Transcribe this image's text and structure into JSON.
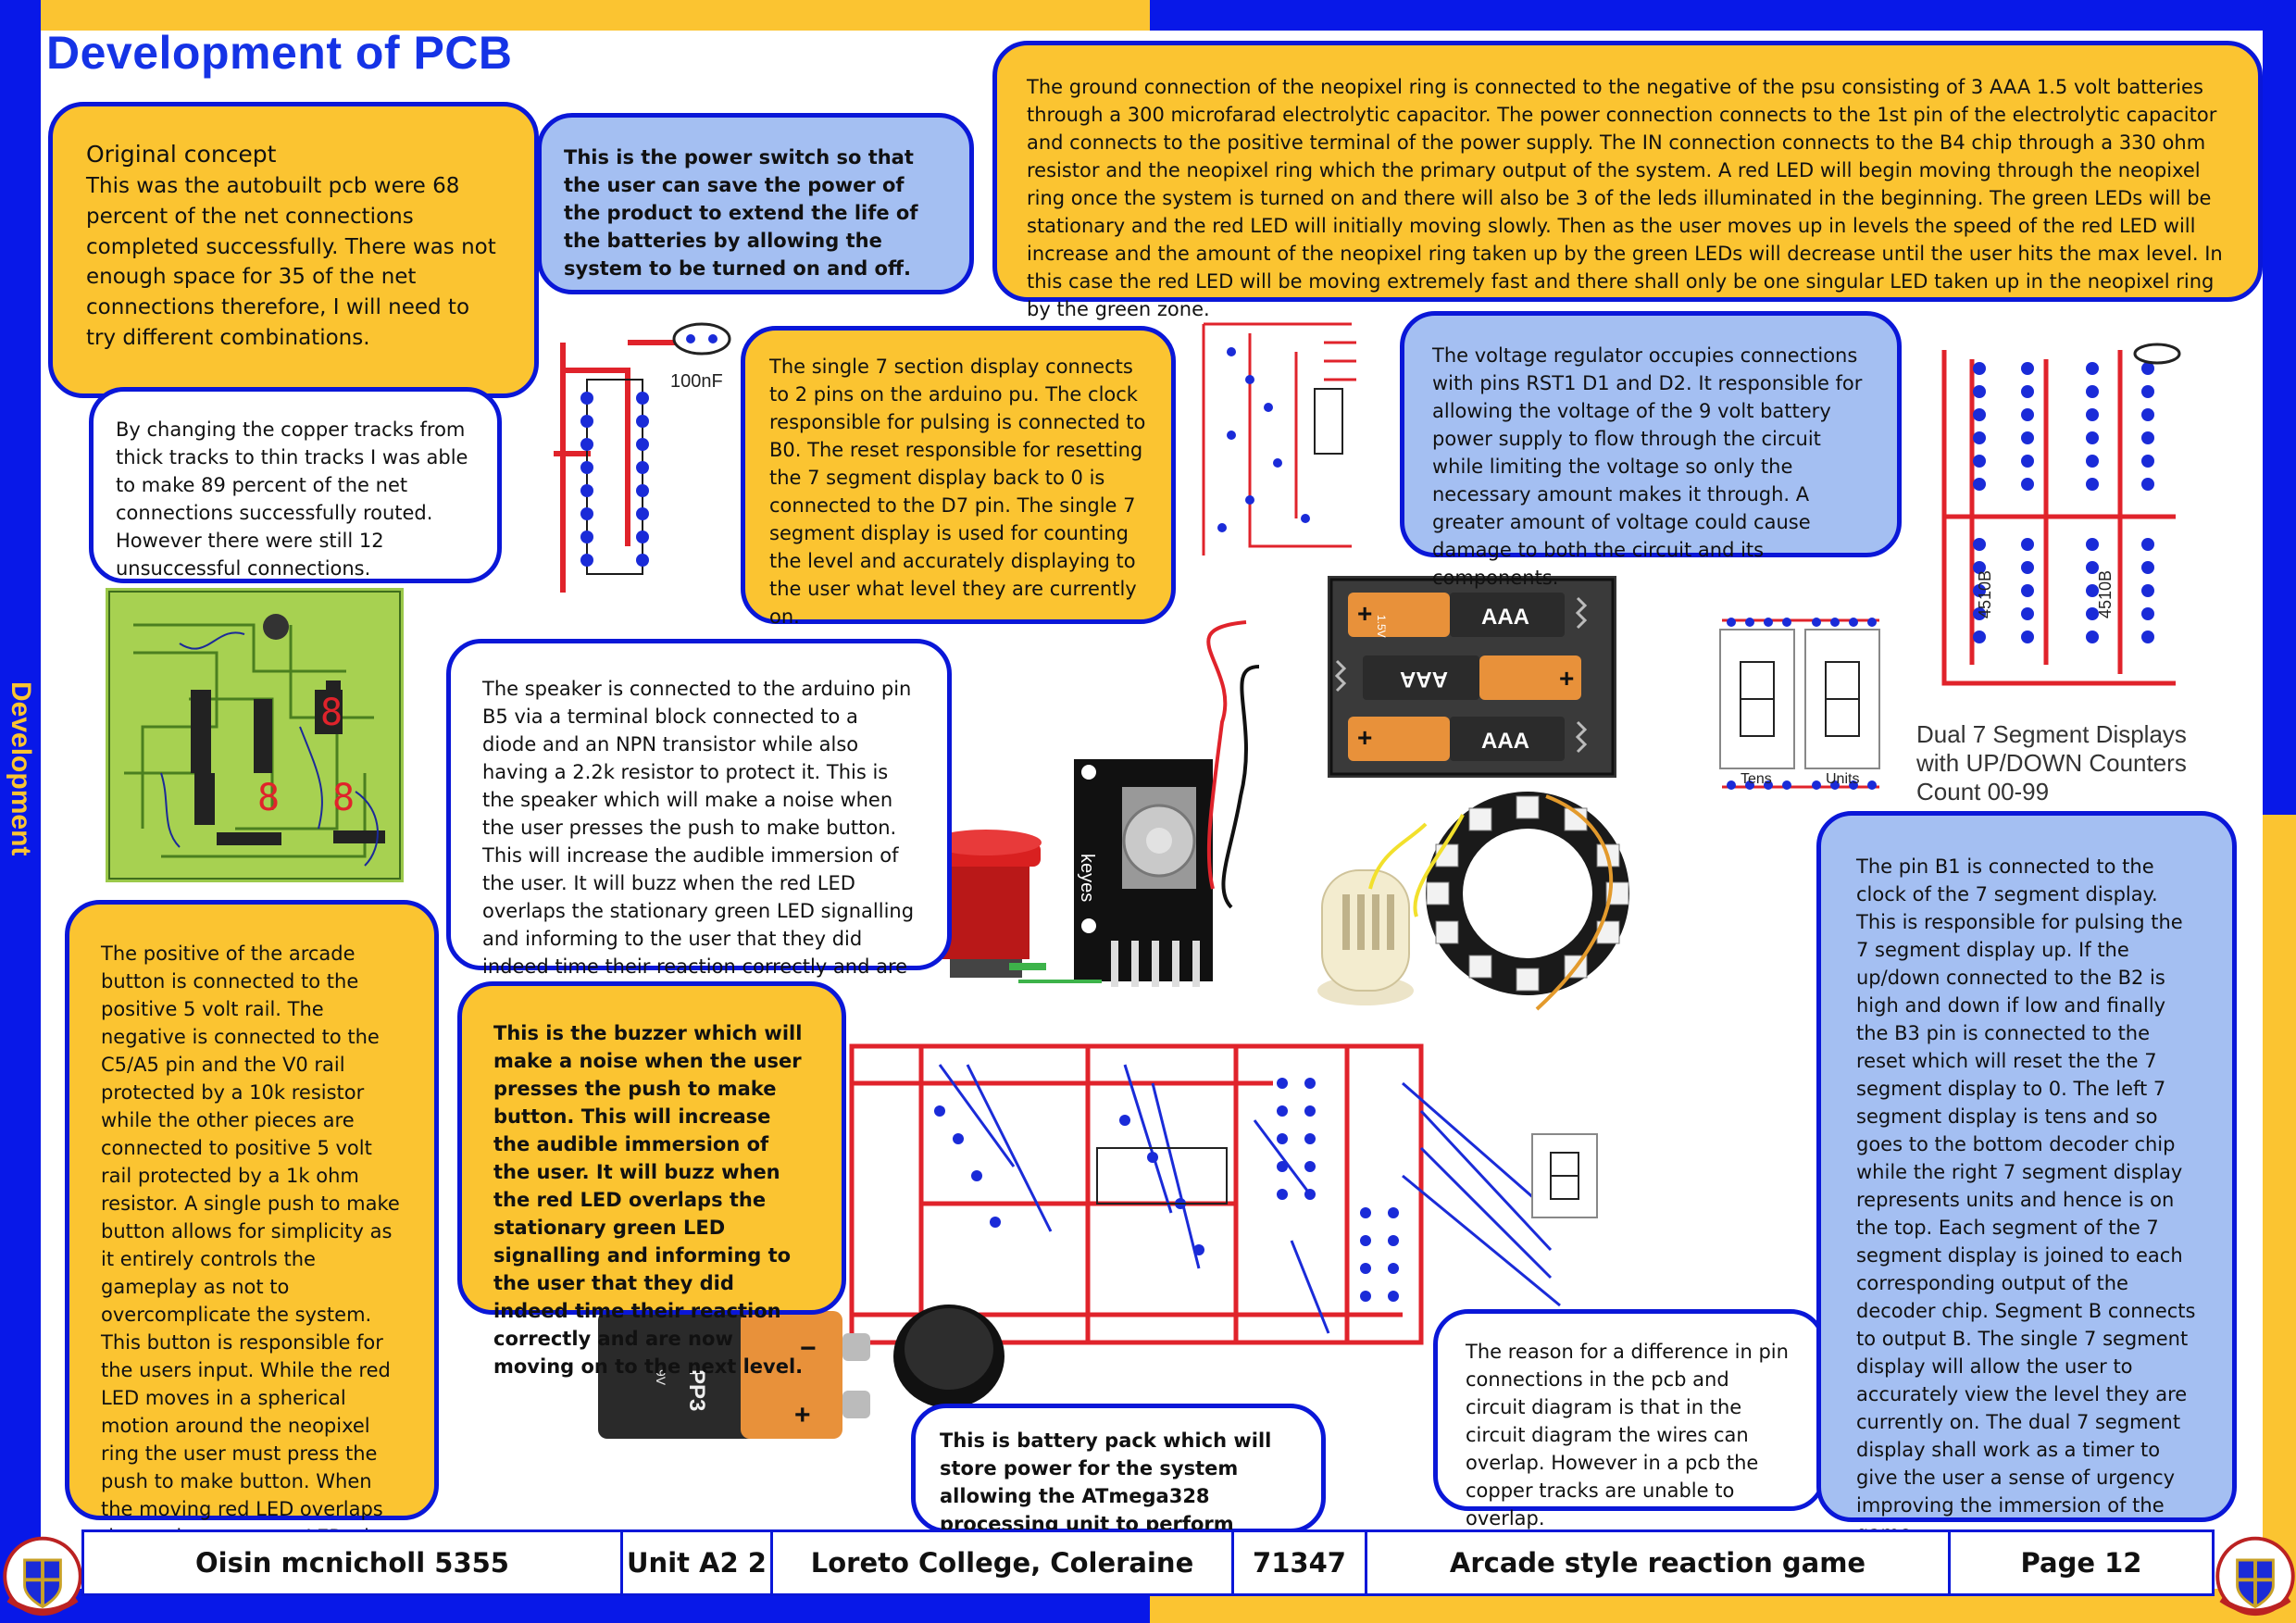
{
  "page": {
    "title": "Development of PCB",
    "side_label": "Development"
  },
  "boxes": {
    "original_concept": {
      "heading": "Original concept",
      "text": "This was the autobuilt pcb were 68 percent of the net connections completed successfully.  There was not enough space for 35 of the net connections therefore, I will need to try different combinations."
    },
    "thin_tracks": "By changing the copper tracks from thick tracks to thin tracks I was able to make 89 percent of the net connections successfully routed. However there were still 12 unsuccessful connections.",
    "power_switch": "This is the power switch so that the user can save the power of the product to extend the life of the batteries by allowing the system to be turned on and off.",
    "seven_seg": "The single 7 section display connects to 2 pins on the arduino pu. The clock responsible for pulsing is connected to B0. The reset responsible for resetting the 7 segment display back to 0 is connected to the D7 pin. The single 7 segment display is used for counting the level and accurately displaying to the user what level they are currently on.",
    "neopixel": "The ground connection of the neopixel ring is connected to the negative of the psu consisting of 3 AAA 1.5 volt batteries through a 300 microfarad electrolytic capacitor. The power connection connects to the 1st pin of the electrolytic capacitor and connects to the positive terminal of the power supply. The IN connection connects to the B4 chip through a 330 ohm resistor and the neopixel ring which the primary output of the system.  A red LED will begin moving through the neopixel ring once the system is turned on and  there will also be 3 of the leds illuminated in the beginning. The green LEDs will be  stationary and the red LED will initially moving slowly. Then as the user moves up in levels the speed of the red LED will increase and the amount of the neopixel ring taken up by the green LEDs will decrease until the user hits the max level. In this case the red LED will be moving extremely fast and there shall only be one singular LED taken up in the neopixel ring by the green zone.",
    "regulator": "The voltage regulator occupies connections with pins RST1 D1 and D2. It responsible for allowing the voltage of the 9 volt battery power supply to flow through the circuit while limiting the voltage so only the necessary amount makes it through.  A greater amount of voltage could cause damage to both the circuit and its components.",
    "speaker": "The speaker is connected to the arduino pin B5 via a terminal block connected to a diode and an NPN transistor while also having a 2.2k resistor to protect it. This is the speaker which will make a noise when the user presses the push to make button. This will increase the audible immersion of the user. It will buzz when the red LED overlaps the stationary green LED signalling and informing to the user that they did indeed time their reaction correctly and are now moving on to the next level.",
    "arcade_button": "The positive of the arcade button is connected to the positive 5 volt rail. The negative is connected to the C5/A5 pin and the V0 rail protected by a 10k resistor while the other pieces are connected to positive 5 volt rail protected by a 1k ohm resistor. A single push to make button allows for simplicity as it entirely controls the gameplay as not to overcomplicate the system. This button is responsible for the users input. While the red LED moves in a spherical motion around the neopixel ring the user must press the push to make button. When the moving red LED overlaps the stationary green LED, the user has been successful.",
    "buzzer": "This is the buzzer which will make  a noise when the user presses the push to make button. This will  increase the audible immersion of the user. It will buzz when the red LED overlaps the stationary green LED signalling and informing to the user that they did indeed time their reaction correctly and are now moving on to the next level.",
    "battery_pack": "This is battery pack which will store power for the system allowing the ATmega328 processing unit to perform optimally.",
    "pin_difference": "The reason for a difference in pin connections in the pcb and circuit diagram is that in the circuit diagram the wires can overlap. However in a pcb the copper tracks are unable to overlap.",
    "pin_b1": "The pin B1 is connected to the clock of the 7 segment display. This is responsible for pulsing the 7 segment display up. If the up/down connected to the B2 is high and down if low and finally the B3 pin is connected to the reset which will reset the the 7 segment display to 0. The left 7 segment display is tens and so goes to the bottom decoder chip while the right 7 segment display represents units and hence is on the top. Each segment of the 7 segment display is joined to each corresponding output of the decoder chip. Segment B connects to output B. The single 7 segment display will allow the user to accurately view the level they are currently on. The dual 7 segment display shall work as a timer to give the user a sense of urgency improving the immersion of the game."
  },
  "diagrams": {
    "cap_label": "100nF",
    "chip_label": "4510B",
    "aaa_label": "AAA",
    "aaa_volt": "1.5V",
    "pp3_label": "PP3",
    "pp3_volt": "9V",
    "keyes_label": "keyes",
    "dual_seg_title": "Dual 7 Segment Displays\nwith UP/DOWN Counters\nCount 00-99",
    "tens_label": "Tens",
    "units_label": "Units"
  },
  "footer": {
    "name": "Oisin mcnicholl 5355",
    "unit": "Unit A2 2",
    "school": "Loreto College, Coleraine",
    "centre": "71347",
    "project": "Arcade style reaction game",
    "page": "Page 12"
  },
  "colors": {
    "accent_blue": "#0a17d8",
    "accent_yellow": "#fbc431",
    "light_blue": "#a4bff2",
    "title_blue": "#1533e6"
  }
}
